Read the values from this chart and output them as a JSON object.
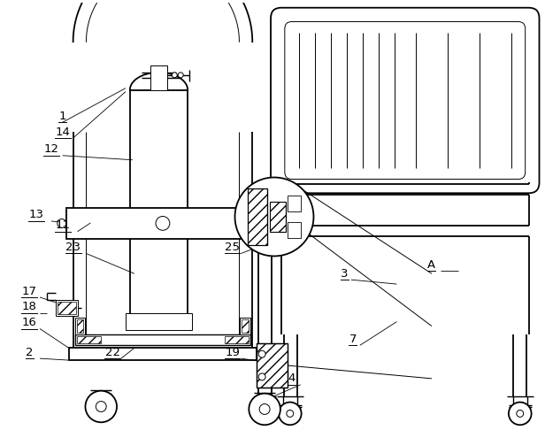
{
  "bg_color": "#ffffff",
  "line_color": "#000000",
  "figsize": [
    6.16,
    4.86
  ],
  "dpi": 100,
  "label_fontsize": 9.5
}
